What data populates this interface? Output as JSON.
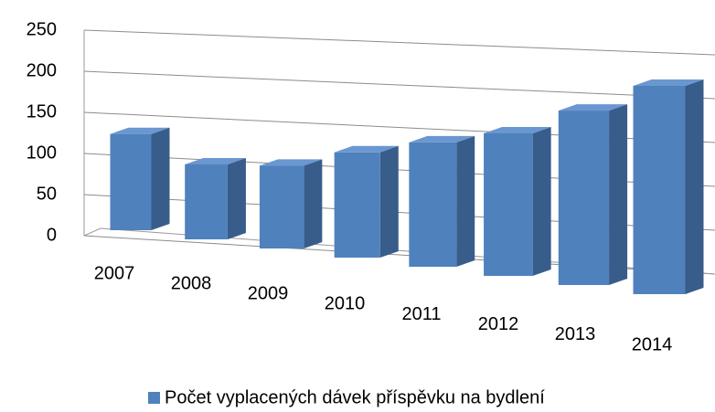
{
  "chart_data": {
    "type": "bar3d",
    "categories": [
      "2007",
      "2008",
      "2009",
      "2010",
      "2011",
      "2012",
      "2013",
      "2014"
    ],
    "series": [
      {
        "name": "Počet vyplacených dávek příspěvku na bydlení",
        "color": "#4f81bd",
        "values": [
          117,
          87,
          92,
          112,
          127,
          140,
          165,
          190
        ]
      }
    ],
    "ylim": [
      0,
      250
    ],
    "yticks": [
      0,
      50,
      100,
      150,
      200,
      250
    ],
    "grid": true,
    "legend": "bottom"
  }
}
